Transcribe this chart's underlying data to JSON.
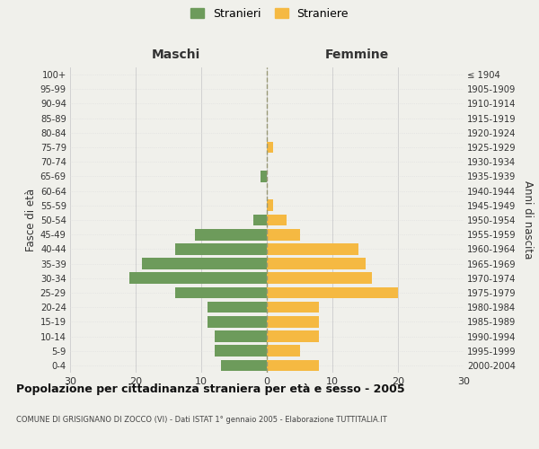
{
  "age_groups_bottom_to_top": [
    "0-4",
    "5-9",
    "10-14",
    "15-19",
    "20-24",
    "25-29",
    "30-34",
    "35-39",
    "40-44",
    "45-49",
    "50-54",
    "55-59",
    "60-64",
    "65-69",
    "70-74",
    "75-79",
    "80-84",
    "85-89",
    "90-94",
    "95-99",
    "100+"
  ],
  "birth_years_bottom_to_top": [
    "2000-2004",
    "1995-1999",
    "1990-1994",
    "1985-1989",
    "1980-1984",
    "1975-1979",
    "1970-1974",
    "1965-1969",
    "1960-1964",
    "1955-1959",
    "1950-1954",
    "1945-1949",
    "1940-1944",
    "1935-1939",
    "1930-1934",
    "1925-1929",
    "1920-1924",
    "1915-1919",
    "1910-1914",
    "1905-1909",
    "≤ 1904"
  ],
  "males_bottom_to_top": [
    7,
    8,
    8,
    9,
    9,
    14,
    21,
    19,
    14,
    11,
    2,
    0,
    0,
    1,
    0,
    0,
    0,
    0,
    0,
    0,
    0
  ],
  "females_bottom_to_top": [
    8,
    5,
    8,
    8,
    8,
    20,
    16,
    15,
    14,
    5,
    3,
    1,
    0,
    0,
    0,
    1,
    0,
    0,
    0,
    0,
    0
  ],
  "male_color": "#6d9b5b",
  "female_color": "#f5b942",
  "background_color": "#f0f0eb",
  "grid_color": "#cccccc",
  "grid_color_y": "#dddddd",
  "title": "Popolazione per cittadinanza straniera per età e sesso - 2005",
  "subtitle": "COMUNE DI GRISIGNANO DI ZOCCO (VI) - Dati ISTAT 1° gennaio 2005 - Elaborazione TUTTITALIA.IT",
  "header_left": "Maschi",
  "header_right": "Femmine",
  "ylabel_left": "Fasce di età",
  "ylabel_right": "Anni di nascita",
  "legend_male": "Stranieri",
  "legend_female": "Straniere",
  "xlim": 30
}
